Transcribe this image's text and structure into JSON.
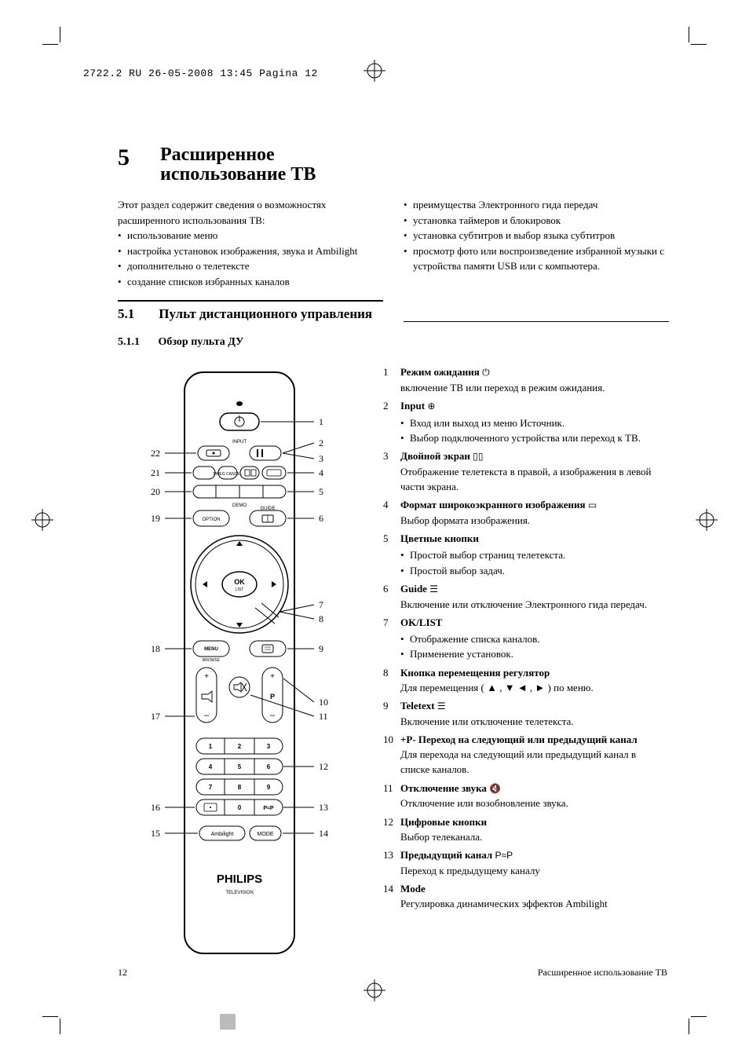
{
  "meta": {
    "header": "2722.2 RU  26-05-2008  13:45  Pagina 12",
    "page_number": "12",
    "footer_right": "Расширенное использование ТВ"
  },
  "chapter": {
    "number": "5",
    "title": "Расширенное использование ТВ"
  },
  "intro": {
    "lead": "Этот раздел содержит сведения о возможностях расширенного использования ТВ:",
    "left_items": [
      "использование меню",
      "настройка установок изображения, звука и Ambilight",
      "дополнительно о телетексте",
      "создание списков избранных каналов"
    ],
    "right_items": [
      "преимущества Электронного гида передач",
      "установка таймеров и блокировок",
      "установка субтитров и выбор языка субтитров",
      "просмотр фото или воспроизведение избранной музыки с устройства памяти USB или с компьютера."
    ]
  },
  "section": {
    "number": "5.1",
    "title": "Пульт дистанционного управления"
  },
  "subsection": {
    "number": "5.1.1",
    "title": "Обзор пульта ДУ"
  },
  "remote": {
    "brand": "PHILIPS",
    "subbrand": "TELEVISION",
    "left_labels": [
      "22",
      "21",
      "20",
      "19",
      "18",
      "17",
      "16",
      "15"
    ],
    "right_labels": [
      "1",
      "2",
      "3",
      "4",
      "5",
      "6",
      "7",
      "8",
      "9",
      "10",
      "11",
      "12",
      "13",
      "14"
    ]
  },
  "callouts": [
    {
      "n": "1",
      "label": "Режим ожидания",
      "icon": "⏻",
      "desc": "включение ТВ или переход в режим ожидания."
    },
    {
      "n": "2",
      "label": "Input",
      "icon": "⊕",
      "bullets": [
        "Вход или выход из меню Источник.",
        "Выбор подключенного устройства или переход к ТВ."
      ]
    },
    {
      "n": "3",
      "label": "Двойной экран",
      "icon": "▯▯",
      "desc": "Отображение телетекста в правой, а изображения в левой части экрана."
    },
    {
      "n": "4",
      "label": "Формат широкоэкранного изображения",
      "icon": "▭",
      "desc": "Выбор формата изображения."
    },
    {
      "n": "5",
      "label": "Цветные кнопки",
      "bullets": [
        "Простой выбор страниц телетекста.",
        "Простой выбор задач."
      ]
    },
    {
      "n": "6",
      "label": "Guide",
      "icon": "☰",
      "desc": "Включение или отключение Электронного гида передач."
    },
    {
      "n": "7",
      "label": "OK/LIST",
      "bullets": [
        "Отображение списка каналов.",
        "Применение установок."
      ]
    },
    {
      "n": "8",
      "label": "Кнопка перемещения регулятор",
      "desc": "Для перемещения ( ▲ , ▼ ◄ , ► ) по меню."
    },
    {
      "n": "9",
      "label": "Teletext",
      "icon": "☰",
      "desc": "Включение или отключение телетекста."
    },
    {
      "n": "10",
      "label": "+P-  Переход на следующий или предыдущий канал",
      "desc": "Для перехода на следующий или предыдущий канал в списке каналов."
    },
    {
      "n": "11",
      "label": "Отключение звука",
      "icon": "🔇",
      "desc": "Отключение или возобновление звука."
    },
    {
      "n": "12",
      "label": "Цифровые кнопки",
      "desc": "Выбор телеканала."
    },
    {
      "n": "13",
      "label": "Предыдущий канал",
      "icon": "P≈P",
      "desc": "Переход к предыдущему каналу"
    },
    {
      "n": "14",
      "label": "Mode",
      "desc": "Регулировка динамических эффектов Ambilight"
    }
  ],
  "style": {
    "page_bg": "#ffffff",
    "text_color": "#000000",
    "body_font_size_pt": 10,
    "heading_font_family": "Georgia, serif",
    "mono_font_family": "Courier New, monospace"
  }
}
